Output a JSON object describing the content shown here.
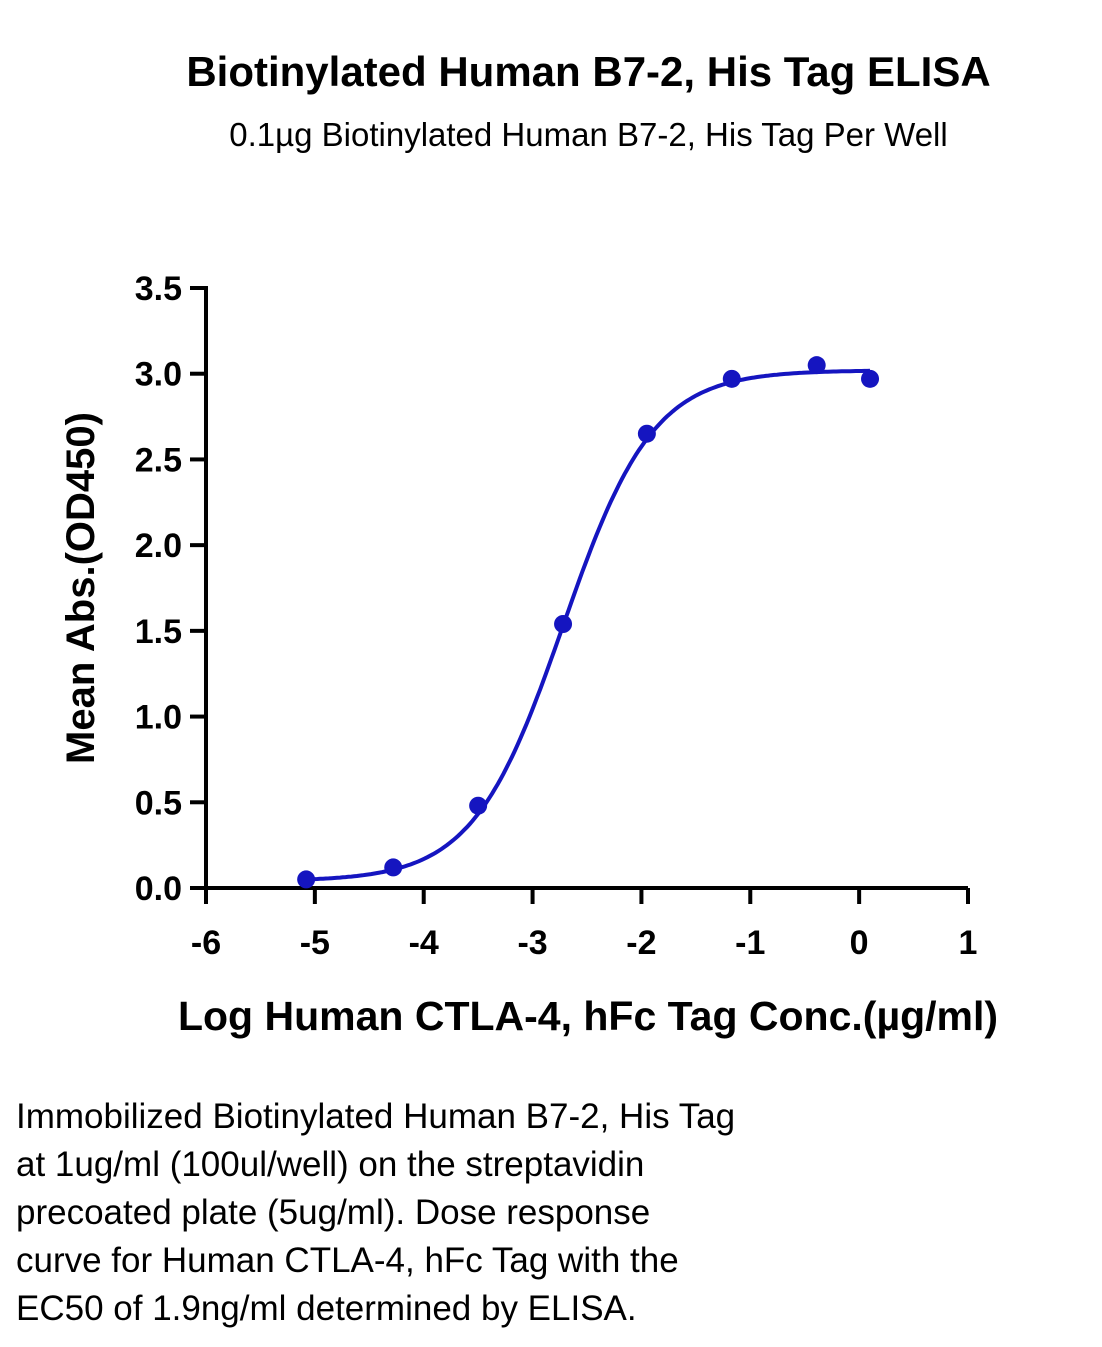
{
  "chart_data": {
    "type": "scatter",
    "title": "Biotinylated Human B7-2, His Tag ELISA",
    "subtitle": "0.1µg Biotinylated Human B7-2, His Tag Per Well",
    "xlabel": "Log Human CTLA-4, hFc Tag Conc.(µg/ml)",
    "ylabel": "Mean Abs.(OD450)",
    "xlim": [
      -6,
      1
    ],
    "ylim": [
      0,
      3.5
    ],
    "xticks": [
      -6,
      -5,
      -4,
      -3,
      -2,
      -1,
      0,
      1
    ],
    "xtick_labels": [
      "-6",
      "-5",
      "-4",
      "-3",
      "-2",
      "-1",
      "0",
      "1"
    ],
    "yticks": [
      0,
      0.5,
      1.0,
      1.5,
      2.0,
      2.5,
      3.0,
      3.5
    ],
    "ytick_labels": [
      "0.0",
      "0.5",
      "1.0",
      "1.5",
      "2.0",
      "2.5",
      "3.0",
      "3.5"
    ],
    "series": [
      {
        "color": "#1515c0",
        "x": [
          -5.08,
          -4.28,
          -3.5,
          -2.72,
          -1.95,
          -1.17,
          -0.39,
          0.1
        ],
        "y": [
          0.05,
          0.12,
          0.48,
          1.54,
          2.65,
          2.97,
          3.05,
          2.97
        ],
        "fit": "4PL"
      }
    ]
  },
  "caption": [
    "Immobilized Biotinylated Human B7-2, His Tag",
    "at 1ug/ml (100ul/well) on the streptavidin",
    "precoated plate (5ug/ml). Dose response",
    "curve for Human CTLA-4, hFc Tag with the",
    "EC50 of 1.9ng/ml determined by ELISA."
  ]
}
